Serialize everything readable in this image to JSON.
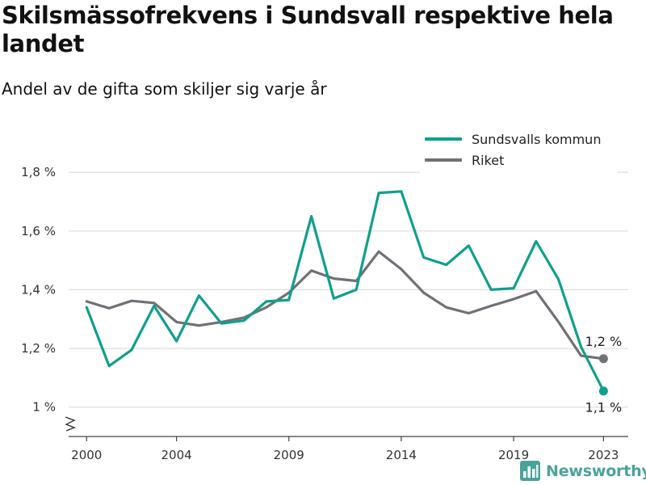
{
  "title": "Skilsmässofrekvens i Sundsvall respektive hela landet",
  "subtitle": "Andel av de gifta som skiljer sig varje år",
  "brand": {
    "name": "Newsworthy",
    "color": "#4aa39a"
  },
  "chart_data": {
    "type": "line",
    "title": "Skilsmässofrekvens i Sundsvall respektive hela landet",
    "subtitle": "Andel av de gifta som skiljer sig varje år",
    "xlabel": "",
    "ylabel": "",
    "x": [
      2000,
      2001,
      2002,
      2003,
      2004,
      2005,
      2006,
      2007,
      2008,
      2009,
      2010,
      2011,
      2012,
      2013,
      2014,
      2015,
      2016,
      2017,
      2018,
      2019,
      2020,
      2021,
      2022,
      2023
    ],
    "xticks": [
      2000,
      2004,
      2009,
      2014,
      2019,
      2023
    ],
    "xtick_labels": [
      "2000",
      "2004",
      "2009",
      "2014",
      "2019",
      "2023"
    ],
    "yticks": [
      1.0,
      1.2,
      1.4,
      1.6,
      1.8
    ],
    "ytick_labels": [
      "1 %",
      "1,2 %",
      "1,4 %",
      "1,6 %",
      "1,8 %"
    ],
    "ylim": [
      0.9,
      1.85
    ],
    "xlim": [
      1999.2,
      2024.1
    ],
    "y_axis_break": true,
    "grid": "horizontal",
    "legend_position": "top-right",
    "series": [
      {
        "name": "Sundsvalls kommun",
        "color": "#0fa08c",
        "values": [
          1.34,
          1.14,
          1.195,
          1.345,
          1.225,
          1.38,
          1.285,
          1.295,
          1.36,
          1.365,
          1.65,
          1.37,
          1.4,
          1.73,
          1.735,
          1.51,
          1.485,
          1.55,
          1.4,
          1.405,
          1.565,
          1.435,
          1.205,
          1.055
        ],
        "end_label": "1,1 %"
      },
      {
        "name": "Riket",
        "color": "#717076",
        "values": [
          1.36,
          1.337,
          1.362,
          1.355,
          1.29,
          1.278,
          1.29,
          1.305,
          1.34,
          1.39,
          1.465,
          1.438,
          1.43,
          1.53,
          1.47,
          1.39,
          1.34,
          1.32,
          1.345,
          1.368,
          1.395,
          1.29,
          1.175,
          1.165
        ],
        "end_label": "1,2 %"
      }
    ]
  }
}
